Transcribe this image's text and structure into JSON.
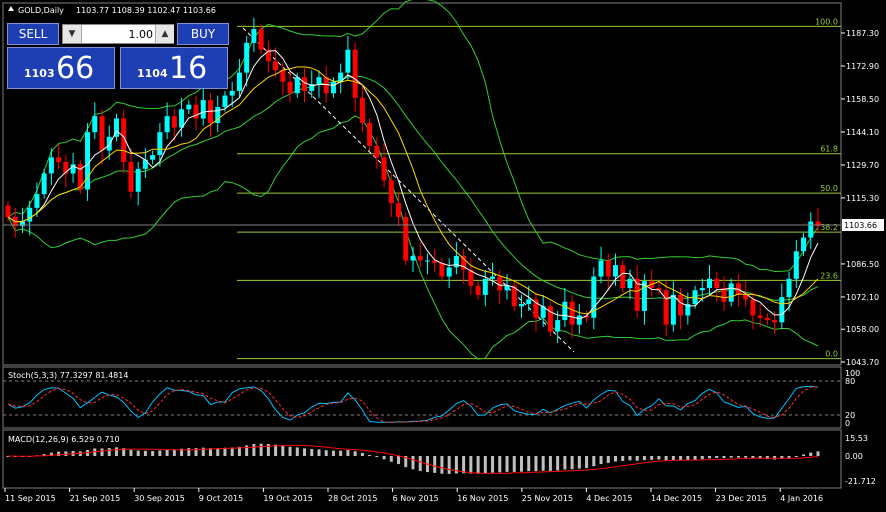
{
  "header": {
    "symbol_label": "GOLD,Daily",
    "ohlc": "1103.77 1108.39 1102.47 1103.66"
  },
  "trade_panel": {
    "sell_label": "SELL",
    "buy_label": "BUY",
    "lot_value": "1.00",
    "bid_small": "1103",
    "bid_big": "66",
    "ask_small": "1104",
    "ask_big": "16"
  },
  "price_axis": {
    "labels": [
      "1187.30",
      "1172.90",
      "1158.50",
      "1144.10",
      "1129.70",
      "1115.30",
      "1086.50",
      "1072.10",
      "1058.00",
      "1043.70"
    ],
    "current": "1103.66"
  },
  "fibonacci": {
    "levels": [
      {
        "label": "100.0",
        "price": 1190.2
      },
      {
        "label": "61.8",
        "price": 1134.6
      },
      {
        "label": "50.0",
        "price": 1117.4
      },
      {
        "label": "38.2",
        "price": 1100.4
      },
      {
        "label": "23.6",
        "price": 1079.3
      },
      {
        "label": "0.0",
        "price": 1045.2
      }
    ]
  },
  "stoch": {
    "label": "Stoch(5,3,3) 77.3297 81.4814",
    "levels": [
      "100",
      "80",
      "20",
      "0"
    ]
  },
  "macd": {
    "label": "MACD(12,26,9) 6.529 0.710",
    "levels": [
      "15.53",
      "0.00",
      "-21.712"
    ]
  },
  "date_labels": [
    "11 Sep 2015",
    "21 Sep 2015",
    "30 Sep 2015",
    "9 Oct 2015",
    "19 Oct 2015",
    "28 Oct 2015",
    "6 Nov 2015",
    "16 Nov 2015",
    "25 Nov 2015",
    "4 Dec 2015",
    "14 Dec 2015",
    "23 Dec 2015",
    "4 Jan 2016"
  ],
  "colors": {
    "bull": "#00ffff",
    "bear": "#ff0000",
    "fib": "#9acd32",
    "band": "#32cd32",
    "ma_fast": "#ffffff",
    "ma_slow": "#ffd700"
  },
  "chart_data": {
    "type": "candlestick",
    "closes": [
      1107,
      1103,
      1105,
      1111,
      1117,
      1126,
      1133,
      1131,
      1126,
      1130,
      1119,
      1144,
      1151,
      1136,
      1142,
      1150,
      1131,
      1118,
      1128,
      1132,
      1134,
      1144,
      1151,
      1146,
      1154,
      1156,
      1150,
      1158,
      1148,
      1155,
      1160,
      1162,
      1170,
      1183,
      1189,
      1180,
      1175,
      1171,
      1166,
      1161,
      1168,
      1162,
      1165,
      1168,
      1161,
      1166,
      1170,
      1180,
      1159,
      1148,
      1138,
      1133,
      1123,
      1113,
      1107,
      1088,
      1090,
      1088,
      1088,
      1087,
      1081,
      1085,
      1090,
      1084,
      1077,
      1073,
      1080,
      1081,
      1075,
      1077,
      1068,
      1069,
      1071,
      1063,
      1068,
      1057,
      1062,
      1070,
      1060,
      1064,
      1063,
      1081,
      1088,
      1081,
      1086,
      1076,
      1080,
      1066,
      1079,
      1076,
      1075,
      1060,
      1073,
      1064,
      1069,
      1075,
      1076,
      1080,
      1076,
      1070,
      1078,
      1073,
      1071,
      1064,
      1063,
      1062,
      1061,
      1072,
      1080,
      1092,
      1098,
      1105,
      1103
    ],
    "opens": [
      1112,
      1107,
      1103,
      1105,
      1111,
      1117,
      1126,
      1133,
      1131,
      1126,
      1130,
      1119,
      1144,
      1151,
      1136,
      1142,
      1150,
      1131,
      1118,
      1128,
      1132,
      1134,
      1144,
      1151,
      1146,
      1154,
      1156,
      1150,
      1158,
      1148,
      1155,
      1160,
      1162,
      1170,
      1183,
      1189,
      1180,
      1175,
      1171,
      1166,
      1161,
      1168,
      1162,
      1165,
      1168,
      1161,
      1166,
      1170,
      1180,
      1159,
      1148,
      1138,
      1133,
      1123,
      1113,
      1107,
      1088,
      1090,
      1088,
      1088,
      1087,
      1081,
      1085,
      1090,
      1084,
      1077,
      1073,
      1080,
      1081,
      1075,
      1077,
      1068,
      1069,
      1071,
      1063,
      1068,
      1057,
      1062,
      1070,
      1060,
      1064,
      1063,
      1081,
      1088,
      1081,
      1086,
      1076,
      1080,
      1066,
      1079,
      1076,
      1075,
      1060,
      1073,
      1064,
      1069,
      1075,
      1076,
      1080,
      1076,
      1070,
      1078,
      1073,
      1071,
      1064,
      1063,
      1062,
      1061,
      1072,
      1080,
      1092,
      1098,
      1105
    ]
  }
}
